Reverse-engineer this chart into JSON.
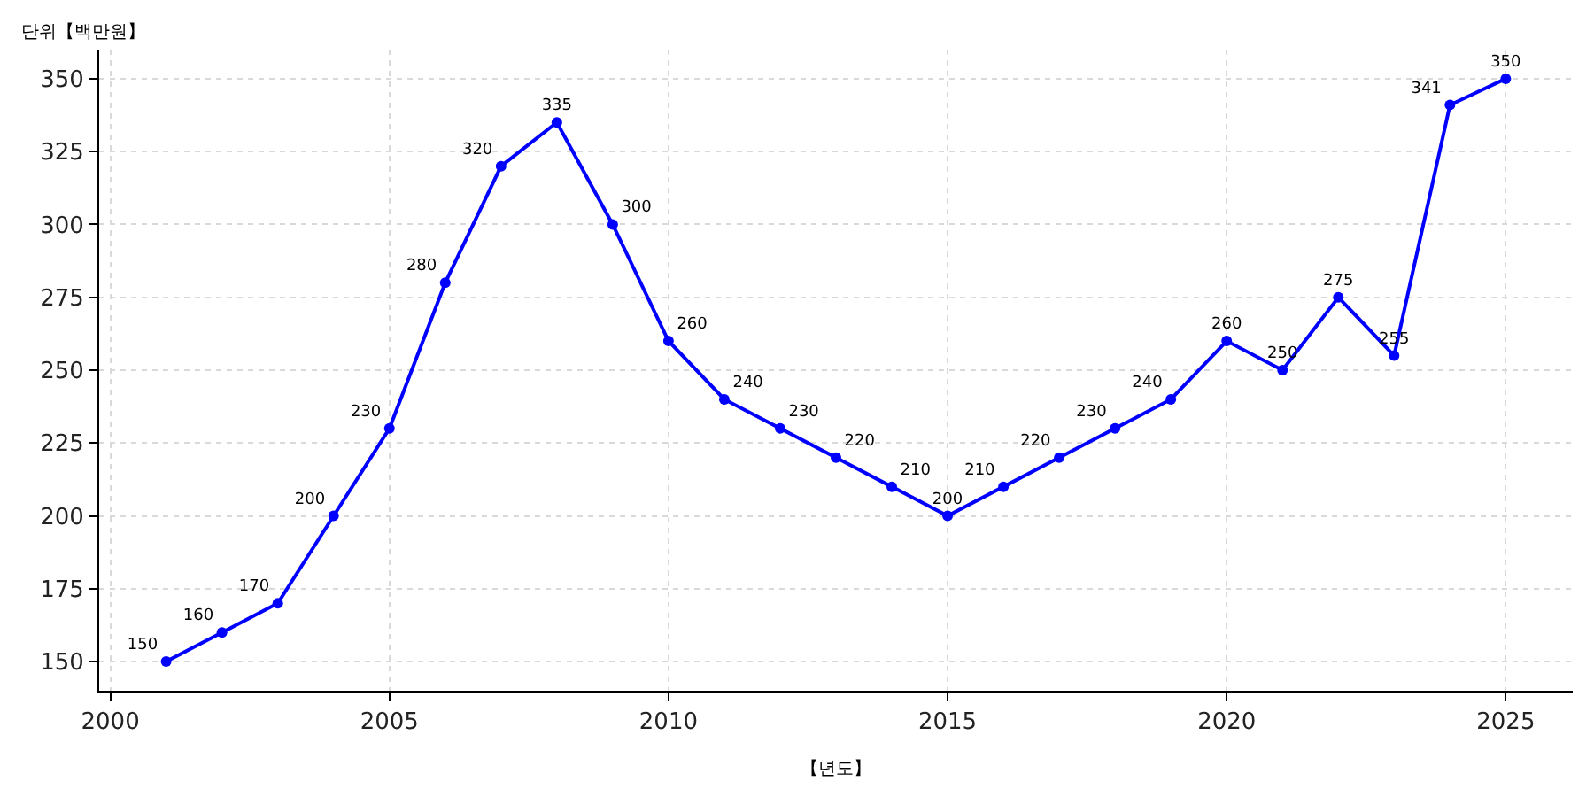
{
  "chart_data": {
    "type": "line",
    "ylabel": "단위【백만원】",
    "xlabel": "【년도】",
    "x": [
      2001,
      2002,
      2003,
      2004,
      2005,
      2006,
      2007,
      2008,
      2009,
      2010,
      2011,
      2012,
      2013,
      2014,
      2015,
      2016,
      2017,
      2018,
      2019,
      2020,
      2021,
      2022,
      2023,
      2024,
      2025
    ],
    "series": [
      {
        "color": "#0000ff",
        "values": [
          150,
          160,
          170,
          200,
          230,
          280,
          320,
          335,
          300,
          260,
          240,
          230,
          220,
          210,
          200,
          210,
          220,
          230,
          240,
          260,
          250,
          275,
          255,
          341,
          350
        ]
      }
    ],
    "xlim": [
      1999.8,
      2026.2
    ],
    "xticks": [
      2000,
      2005,
      2010,
      2015,
      2020,
      2025
    ],
    "ylim": [
      140,
      360
    ],
    "yticks": [
      150,
      175,
      200,
      225,
      250,
      275,
      300,
      325,
      350
    ],
    "grid": true,
    "marker": "circle",
    "line_style": "solid",
    "data_labels": true
  }
}
